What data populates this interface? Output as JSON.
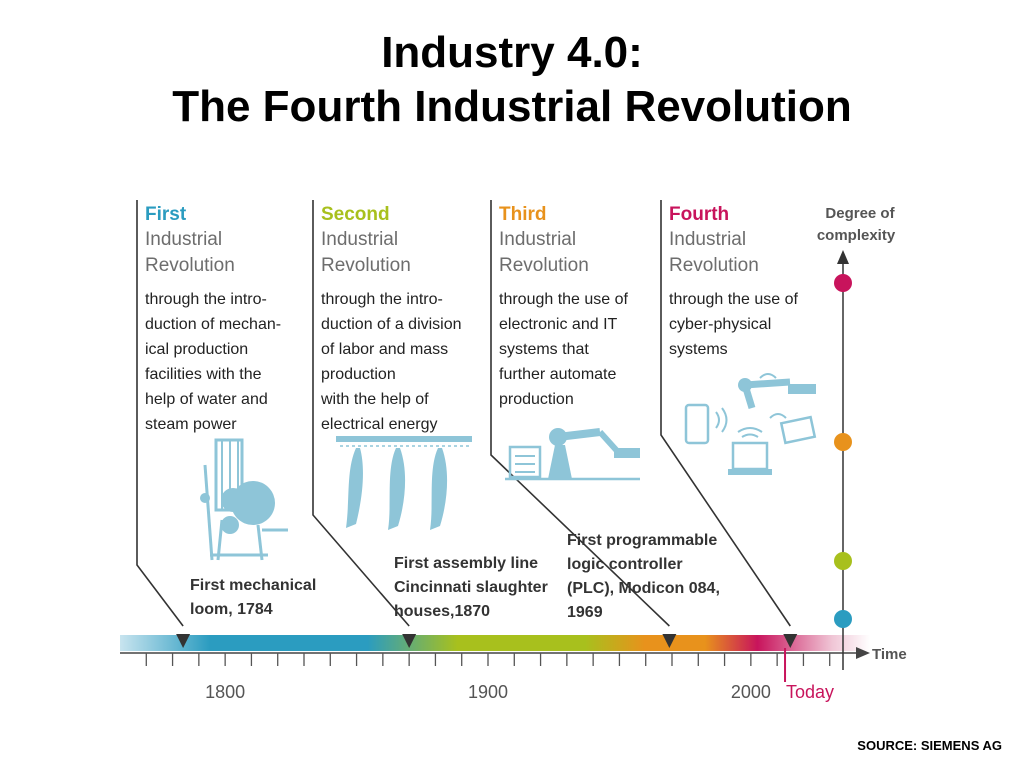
{
  "title_line1": "Industry 4.0:",
  "title_line2": "The Fourth Industrial Revolution",
  "source": "SOURCE: SIEMENS AG",
  "colors": {
    "first": "#2b9cc0",
    "second": "#a8c01d",
    "third": "#e8921c",
    "fourth": "#c8145c",
    "gray_text": "#6d6d6d",
    "illustration": "#8ec5d8",
    "axis": "#444444"
  },
  "revolutions": [
    {
      "heading": "First",
      "subheading": [
        "Industrial",
        "Revolution"
      ],
      "description": [
        "through the intro-",
        "duction of mechan-",
        "ical production",
        "facilities with the",
        "help of water and",
        "steam power"
      ],
      "milestone": [
        "First mechanical",
        "loom, 1784"
      ],
      "milestone_year": 1784,
      "illustration_icon": "loom-icon"
    },
    {
      "heading": "Second",
      "subheading": [
        "Industrial",
        "Revolution"
      ],
      "description": [
        "through the intro-",
        "duction of a division",
        "of labor and mass",
        "production",
        "with the help of",
        "electrical energy"
      ],
      "milestone": [
        "First assembly line",
        "Cincinnati slaughter",
        "houses,1870"
      ],
      "milestone_year": 1870,
      "illustration_icon": "assembly-line-icon"
    },
    {
      "heading": "Third",
      "subheading": [
        "Industrial",
        "Revolution"
      ],
      "description": [
        "through the use of",
        "electronic and IT",
        "systems that",
        "further automate",
        "production"
      ],
      "milestone": [
        "First programmable",
        "logic controller",
        "(PLC), Modicon 084,",
        "1969"
      ],
      "milestone_year": 1969,
      "illustration_icon": "robot-arm-icon"
    },
    {
      "heading": "Fourth",
      "subheading": [
        "Industrial",
        "Revolution"
      ],
      "description": [
        "through the use of",
        "cyber-physical",
        "systems"
      ],
      "milestone": [],
      "milestone_year": 2015,
      "illustration_icon": "cyber-physical-icon"
    }
  ],
  "axis": {
    "label": "Time",
    "range": [
      1760,
      2040
    ],
    "ticks": [
      {
        "year": 1800,
        "label": "1800"
      },
      {
        "year": 1900,
        "label": "1900"
      },
      {
        "year": 2000,
        "label": "2000"
      }
    ],
    "today_label": "Today",
    "today_year": 2013
  },
  "complexity_axis": {
    "label": [
      "Degree of",
      "complexity"
    ]
  }
}
